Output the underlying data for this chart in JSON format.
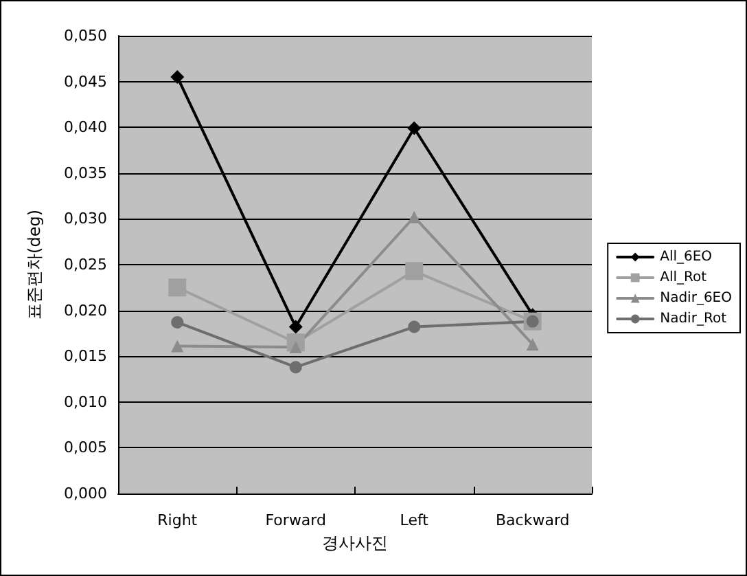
{
  "chart_data": {
    "type": "line",
    "xlabel": "경사사진",
    "ylabel": "표준편차(deg)",
    "categories": [
      "Right",
      "Forward",
      "Left",
      "Backward"
    ],
    "series": [
      {
        "name": "All_6EO",
        "color": "#000000",
        "marker": "diamond",
        "values": [
          0.0455,
          0.0182,
          0.0399,
          0.0195
        ]
      },
      {
        "name": "All_Rot",
        "color": "#a0a0a0",
        "marker": "square",
        "values": [
          0.0225,
          0.0165,
          0.0243,
          0.0188
        ]
      },
      {
        "name": "Nadir_6EO",
        "color": "#8c8c8c",
        "marker": "triangle",
        "values": [
          0.0161,
          0.016,
          0.0302,
          0.0163
        ]
      },
      {
        "name": "Nadir_Rot",
        "color": "#6e6e6e",
        "marker": "circle",
        "values": [
          0.0187,
          0.0138,
          0.0182,
          0.0188
        ]
      }
    ],
    "ylim": [
      0,
      0.05
    ],
    "yticks": [
      {
        "value": 0,
        "label": "0,000"
      },
      {
        "value": 0.005,
        "label": "0,005"
      },
      {
        "value": 0.01,
        "label": "0,010"
      },
      {
        "value": 0.015,
        "label": "0,015"
      },
      {
        "value": 0.02,
        "label": "0,020"
      },
      {
        "value": 0.025,
        "label": "0,025"
      },
      {
        "value": 0.03,
        "label": "0,030"
      },
      {
        "value": 0.035,
        "label": "0,035"
      },
      {
        "value": 0.04,
        "label": "0,040"
      },
      {
        "value": 0.045,
        "label": "0,045"
      },
      {
        "value": 0.05,
        "label": "0,050"
      }
    ],
    "grid": "y",
    "legend": "right"
  }
}
